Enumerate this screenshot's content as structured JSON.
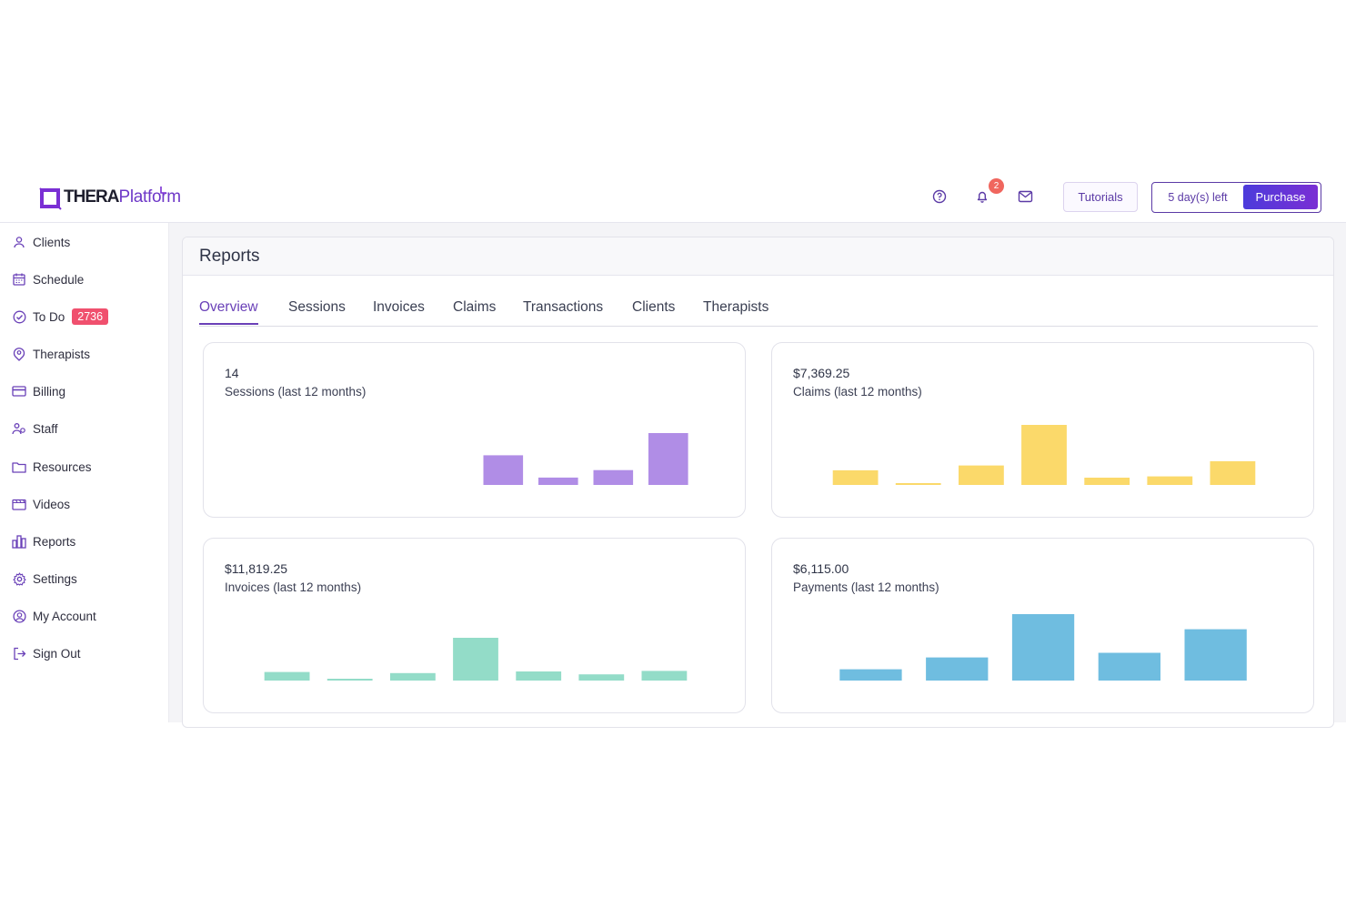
{
  "brand": {
    "name_bold": "THERA",
    "name_light": "Platform"
  },
  "header": {
    "notifications_count": "2",
    "tutorials_label": "Tutorials",
    "trial_text": "5 day(s) left",
    "purchase_label": "Purchase"
  },
  "sidebar": {
    "items": [
      {
        "label": "Clients",
        "icon": "user-icon"
      },
      {
        "label": "Schedule",
        "icon": "calendar-icon"
      },
      {
        "label": "To Do",
        "icon": "check-circle-icon",
        "badge": "2736"
      },
      {
        "label": "Therapists",
        "icon": "therapist-icon"
      },
      {
        "label": "Billing",
        "icon": "credit-card-icon"
      },
      {
        "label": "Staff",
        "icon": "staff-icon"
      },
      {
        "label": "Resources",
        "icon": "folder-icon"
      },
      {
        "label": "Videos",
        "icon": "video-icon"
      },
      {
        "label": "Reports",
        "icon": "bar-chart-icon"
      },
      {
        "label": "Settings",
        "icon": "gear-icon"
      },
      {
        "label": "My Account",
        "icon": "account-icon"
      },
      {
        "label": "Sign Out",
        "icon": "sign-out-icon"
      }
    ]
  },
  "main": {
    "title": "Reports",
    "tabs": [
      "Overview",
      "Sessions",
      "Invoices",
      "Claims",
      "Transactions",
      "Clients",
      "Therapists"
    ],
    "active_tab": "Overview"
  },
  "colors": {
    "accent": "#6a41b8",
    "sessions": "#b08de6",
    "claims": "#fbd96a",
    "invoices": "#93dcc8",
    "payments": "#6fbde0"
  },
  "chart_data": [
    {
      "type": "bar",
      "value_label": "14",
      "caption": "Sessions (last 12 months)",
      "values": [
        0,
        0,
        0,
        0,
        4,
        1,
        2,
        7
      ]
    },
    {
      "type": "bar",
      "value_label": "$7,369.25",
      "caption": "Claims (last 12 months)",
      "values": [
        480,
        40,
        640,
        1970,
        240,
        280,
        780
      ]
    },
    {
      "type": "bar",
      "value_label": "$11,819.25",
      "caption": "Invoices (last 12 months)",
      "values": [
        800,
        50,
        700,
        4000,
        850,
        580,
        900
      ]
    },
    {
      "type": "bar",
      "value_label": "$6,115.00",
      "caption": "Payments (last 12 months)",
      "values": [
        240,
        490,
        1410,
        590,
        1090
      ]
    }
  ]
}
